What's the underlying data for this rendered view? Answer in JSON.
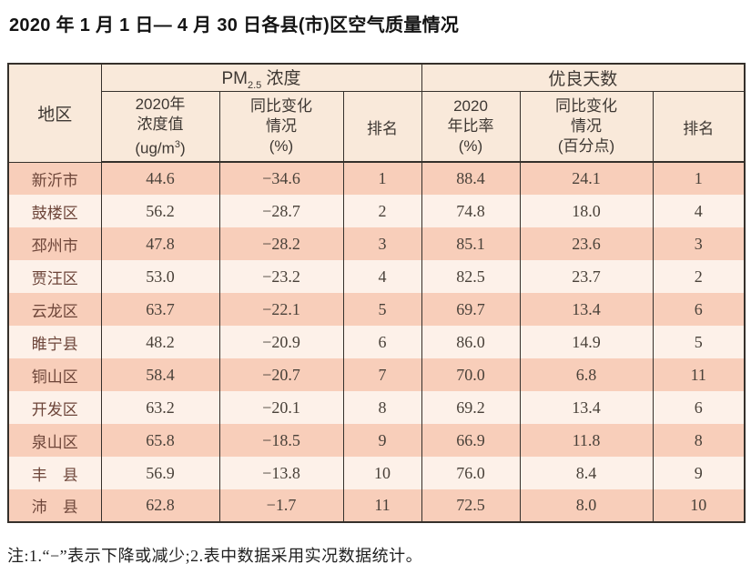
{
  "title": "2020 年 1 月 1 日— 4 月 30 日各县(市)区空气质量情况",
  "table": {
    "region_header": "地区",
    "pm_group": {
      "prefix": "PM",
      "sub": "2.5",
      "suffix": " 浓度"
    },
    "good_days_group": "优良天数",
    "sub_headers": {
      "pm_value": {
        "line1": "2020年",
        "line2": "浓度值",
        "line3_pre": "(ug/m",
        "line3_sup": "3",
        "line3_post": ")"
      },
      "pm_change": {
        "line1": "同比变化",
        "line2": "情况",
        "line3": "(%)"
      },
      "pm_rank": "排名",
      "ratio": {
        "line1": "2020",
        "line2": "年比率",
        "line3": "(%)"
      },
      "ratio_change": {
        "line1": "同比变化",
        "line2": "情况",
        "line3": "(百分点)"
      },
      "ratio_rank": "排名"
    },
    "rows": [
      {
        "region": "新沂市",
        "pm_value": "44.6",
        "pm_change": "−34.6",
        "pm_rank": "1",
        "ratio": "88.4",
        "ratio_change": "24.1",
        "ratio_rank": "1"
      },
      {
        "region": "鼓楼区",
        "pm_value": "56.2",
        "pm_change": "−28.7",
        "pm_rank": "2",
        "ratio": "74.8",
        "ratio_change": "18.0",
        "ratio_rank": "4"
      },
      {
        "region": "邳州市",
        "pm_value": "47.8",
        "pm_change": "−28.2",
        "pm_rank": "3",
        "ratio": "85.1",
        "ratio_change": "23.6",
        "ratio_rank": "3"
      },
      {
        "region": "贾汪区",
        "pm_value": "53.0",
        "pm_change": "−23.2",
        "pm_rank": "4",
        "ratio": "82.5",
        "ratio_change": "23.7",
        "ratio_rank": "2"
      },
      {
        "region": "云龙区",
        "pm_value": "63.7",
        "pm_change": "−22.1",
        "pm_rank": "5",
        "ratio": "69.7",
        "ratio_change": "13.4",
        "ratio_rank": "6"
      },
      {
        "region": "睢宁县",
        "pm_value": "48.2",
        "pm_change": "−20.9",
        "pm_rank": "6",
        "ratio": "86.0",
        "ratio_change": "14.9",
        "ratio_rank": "5"
      },
      {
        "region": "铜山区",
        "pm_value": "58.4",
        "pm_change": "−20.7",
        "pm_rank": "7",
        "ratio": "70.0",
        "ratio_change": "6.8",
        "ratio_rank": "11"
      },
      {
        "region": "开发区",
        "pm_value": "63.2",
        "pm_change": "−20.1",
        "pm_rank": "8",
        "ratio": "69.2",
        "ratio_change": "13.4",
        "ratio_rank": "6"
      },
      {
        "region": "泉山区",
        "pm_value": "65.8",
        "pm_change": "−18.5",
        "pm_rank": "9",
        "ratio": "66.9",
        "ratio_change": "11.8",
        "ratio_rank": "8"
      },
      {
        "region": "丰　县",
        "pm_value": "56.9",
        "pm_change": "−13.8",
        "pm_rank": "10",
        "ratio": "76.0",
        "ratio_change": "8.4",
        "ratio_rank": "9"
      },
      {
        "region": "沛　县",
        "pm_value": "62.8",
        "pm_change": "−1.7",
        "pm_rank": "11",
        "ratio": "72.5",
        "ratio_change": "8.0",
        "ratio_rank": "10"
      }
    ]
  },
  "note": "注:1.“−”表示下降或减少;2.表中数据采用实况数据统计。",
  "colors": {
    "row-dark": "#f8ceba",
    "row-light": "#fdf1e9",
    "header-bg": "#f9e9da",
    "border": "#35302b",
    "region-text": "#6d4539",
    "value-text": "#494139"
  }
}
